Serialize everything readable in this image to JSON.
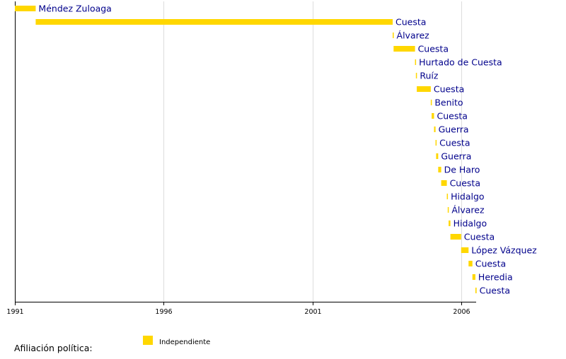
{
  "chart_data": {
    "type": "bar",
    "orientation": "horizontal-timeline",
    "x_axis": {
      "min": 1991,
      "max": 2007.4,
      "ticks": [
        1991,
        1996,
        2001,
        2006
      ]
    },
    "grid": true,
    "series": [
      {
        "name": "Independiente",
        "color": "#ffd700"
      }
    ],
    "bars": [
      {
        "label": "Méndez Zuloaga",
        "start": 1991.0,
        "end": 1991.7
      },
      {
        "label": "Cuesta",
        "start": 1991.7,
        "end": 2003.7
      },
      {
        "label": "Álvarez",
        "start": 2003.7,
        "end": 2003.73
      },
      {
        "label": "Cuesta",
        "start": 2003.73,
        "end": 2004.45
      },
      {
        "label": "Hurtado de Cuesta",
        "start": 2004.45,
        "end": 2004.48
      },
      {
        "label": "Ruíz",
        "start": 2004.48,
        "end": 2004.51
      },
      {
        "label": "Cuesta",
        "start": 2004.51,
        "end": 2004.98
      },
      {
        "label": "Benito",
        "start": 2004.98,
        "end": 2005.01
      },
      {
        "label": "Cuesta",
        "start": 2005.01,
        "end": 2005.09
      },
      {
        "label": "Guerra",
        "start": 2005.09,
        "end": 2005.14
      },
      {
        "label": "Cuesta",
        "start": 2005.14,
        "end": 2005.16
      },
      {
        "label": "Guerra",
        "start": 2005.16,
        "end": 2005.23
      },
      {
        "label": "De Haro",
        "start": 2005.23,
        "end": 2005.33
      },
      {
        "label": "Cuesta",
        "start": 2005.33,
        "end": 2005.52
      },
      {
        "label": "Hidalgo",
        "start": 2005.52,
        "end": 2005.55
      },
      {
        "label": "Álvarez",
        "start": 2005.55,
        "end": 2005.58
      },
      {
        "label": "Hidalgo",
        "start": 2005.58,
        "end": 2005.64
      },
      {
        "label": "Cuesta",
        "start": 2005.64,
        "end": 2006.0
      },
      {
        "label": "López Vázquez",
        "start": 2006.0,
        "end": 2006.25
      },
      {
        "label": "Cuesta",
        "start": 2006.25,
        "end": 2006.38
      },
      {
        "label": "Heredia",
        "start": 2006.38,
        "end": 2006.48
      },
      {
        "label": "Cuesta",
        "start": 2006.48,
        "end": 2006.52
      }
    ]
  },
  "legend": {
    "title": "Afiliación política:",
    "items": [
      {
        "label": "Independiente",
        "color": "#ffd700"
      }
    ]
  }
}
